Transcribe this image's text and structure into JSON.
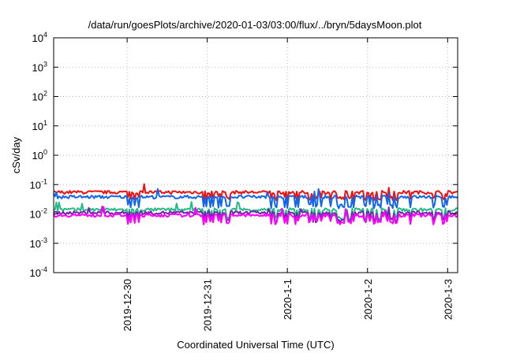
{
  "chart_data": {
    "type": "line",
    "title": "/data/run/goesPlots/archive/2020-01-03/03:00/flux/../bryn/5daysMoon.plot",
    "xlabel": "Coordinated Universal Time (UTC)",
    "ylabel": "cSv/day",
    "yscale": "log",
    "ylim": [
      0.0001,
      10000
    ],
    "xlim": [
      "2019-12-29T02:00",
      "2020-01-03T03:00"
    ],
    "grid": true,
    "y_ticks": [
      {
        "base": "10",
        "exp": "-4"
      },
      {
        "base": "10",
        "exp": "-3"
      },
      {
        "base": "10",
        "exp": "-2"
      },
      {
        "base": "10",
        "exp": "-1"
      },
      {
        "base": "10",
        "exp": "0"
      },
      {
        "base": "10",
        "exp": "1"
      },
      {
        "base": "10",
        "exp": "2"
      },
      {
        "base": "10",
        "exp": "3"
      },
      {
        "base": "10",
        "exp": "4"
      }
    ],
    "x_ticks": [
      "2019-12-30",
      "2019-12-31",
      "2020-1-1",
      "2020-1-2",
      "2020-1-3"
    ],
    "series": [
      {
        "color": "#ee1111",
        "base": 0.055,
        "dip": 0.04,
        "spikes": 0.3
      },
      {
        "color": "#1166ee",
        "base": 0.038,
        "dip": 0.022,
        "spikes": 0.4
      },
      {
        "color": "#22bb88",
        "base": 0.014,
        "dip": 0.0085,
        "spikes": 0.5
      },
      {
        "color": "#7722aa",
        "base": 0.011,
        "dip": 0.0072,
        "spikes": 0.55
      },
      {
        "color": "#ff00ff",
        "base": 0.009,
        "dip": 0.0062,
        "spikes": 0.6
      }
    ]
  }
}
